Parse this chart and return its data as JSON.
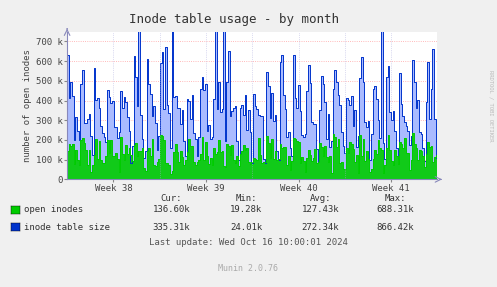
{
  "title": "Inode table usage - by month",
  "ylabel": "number of open inodes",
  "xlabel_ticks": [
    "Week 38",
    "Week 39",
    "Week 40",
    "Week 41"
  ],
  "ylim": [
    0,
    750000
  ],
  "yticks": [
    0,
    100000,
    200000,
    300000,
    400000,
    500000,
    600000,
    700000
  ],
  "ytick_labels": [
    "0",
    "100 k",
    "200 k",
    "300 k",
    "400 k",
    "500 k",
    "600 k",
    "700 k"
  ],
  "color_open": "#00cc00",
  "color_inode": "#0033cc",
  "color_inode_fill": "#aabbff",
  "color_hgrid": "#ff9999",
  "color_vgrid": "#aaaadd",
  "bg_color": "#f0f0f0",
  "plot_bg": "#ffffff",
  "legend_items": [
    "open inodes",
    "inode table size"
  ],
  "cur_open": "136.60k",
  "min_open": "19.28k",
  "avg_open": "127.43k",
  "max_open": "688.31k",
  "cur_inode": "335.31k",
  "min_inode": "24.01k",
  "avg_inode": "272.34k",
  "max_inode": "866.42k",
  "last_update": "Last update: Wed Oct 16 10:00:01 2024",
  "munin_version": "Munin 2.0.76",
  "rrdtool_label": "RRDTOOL / TOBI OETIKER",
  "title_fontsize": 9,
  "label_fontsize": 6.5,
  "tick_fontsize": 6.5,
  "legend_fontsize": 6.5,
  "footer_fontsize": 6.5
}
